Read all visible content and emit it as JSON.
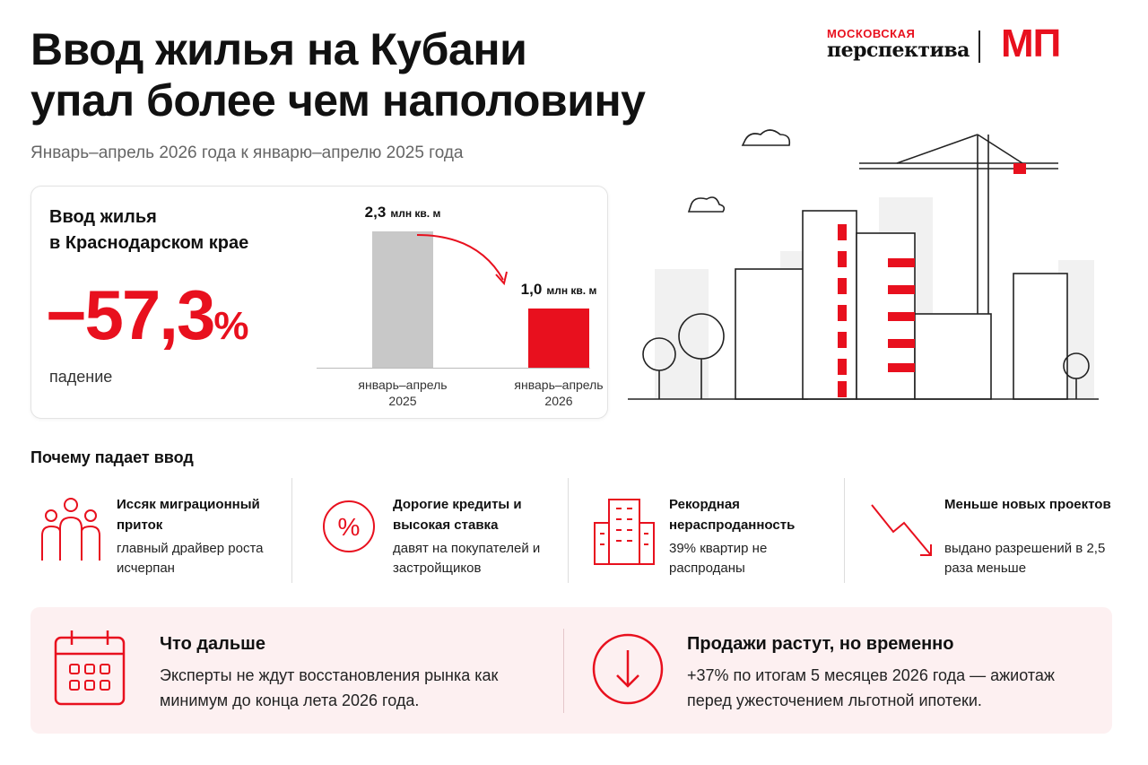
{
  "header": {
    "title": [
      "Ввод жилья на Кубани",
      "упал более чем наполовину"
    ],
    "subtitle": "Январь–апрель 2026 года к январю–апрелю 2025 года",
    "logo": {
      "top": "МОСКОВСКАЯ",
      "bottom": "перспектива",
      "mark": "МП"
    }
  },
  "summary": {
    "heading": [
      "Ввод жилья",
      "в Краснодарском крае"
    ],
    "change": "−57,3",
    "change_unit": "%",
    "caption": "падение"
  },
  "chart_data": {
    "type": "bar",
    "categories": [
      "январь–апрель 2025",
      "январь–апрель 2026"
    ],
    "values": [
      2.3,
      1.0
    ],
    "value_labels": [
      "2,3",
      "1,0"
    ],
    "unit": "млн кв. м",
    "colors": [
      "#c8c8c8",
      "#e8101e"
    ]
  },
  "reasons": {
    "title": "Почему падает ввод",
    "items": [
      {
        "heading": "Иссяк миграционный приток",
        "text": "главный драйвер роста исчерпан"
      },
      {
        "heading": "Дорогие кредиты и высокая ставка",
        "text": "давят на покупателей и застройщиков"
      },
      {
        "heading": "Рекордная нераспроданность",
        "text": "39% квартир не распроданы"
      },
      {
        "heading": "Меньше новых проектов",
        "text": "выдано разрешений в 2,5 раза меньше"
      }
    ]
  },
  "outlook": [
    {
      "heading": "Что дальше",
      "text": "Эксперты не ждут восстановления рынка как минимум до конца лета 2026 года."
    },
    {
      "heading": "Продажи растут, но временно",
      "text": "+37% по итогам 5 месяцев 2026 года — ажиотаж перед ужесточением льготной ипотеки."
    }
  ]
}
